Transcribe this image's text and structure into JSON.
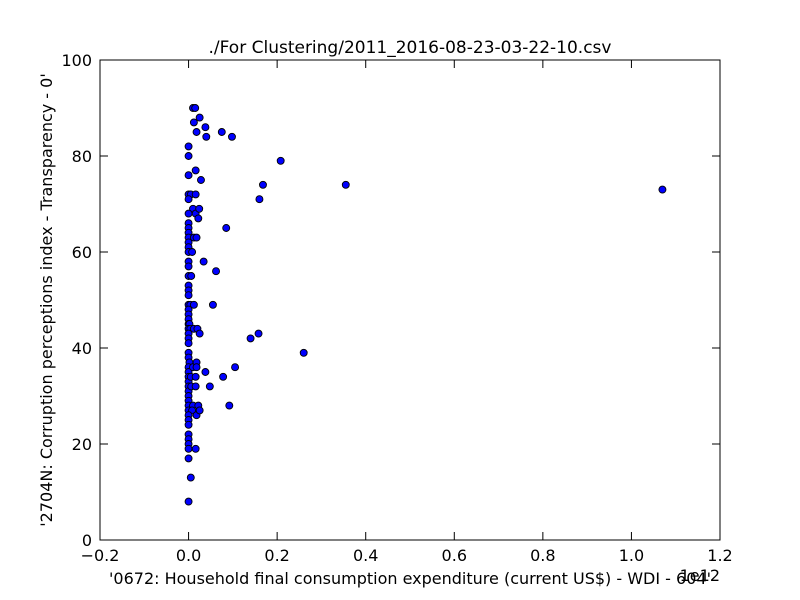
{
  "chart_data": {
    "type": "scatter",
    "title": "./For Clustering/2011_2016-08-23-03-22-10.csv",
    "xlabel": "'0672: Household final consumption expenditure  (current US$) - WDI - 604'",
    "ylabel": "'2704N: Corruption perceptions index - Transparency - 0'",
    "x_offset_label": "1e12",
    "xlim": [
      -0.2,
      1.2
    ],
    "ylim": [
      0,
      100
    ],
    "x_ticks": [
      "−0.2",
      "0.0",
      "0.2",
      "0.4",
      "0.6",
      "0.8",
      "1.0",
      "1.2"
    ],
    "y_ticks": [
      "0",
      "20",
      "40",
      "60",
      "80",
      "100"
    ],
    "grid": false,
    "marker_color": "#0000ff",
    "series": [
      {
        "points": [
          [
            0.01,
            90
          ],
          [
            0.015,
            90
          ],
          [
            0.012,
            87
          ],
          [
            0.025,
            88
          ],
          [
            0.018,
            85
          ],
          [
            0.038,
            86
          ],
          [
            0.04,
            84
          ],
          [
            0.075,
            85
          ],
          [
            0.098,
            84
          ],
          [
            0.0,
            82
          ],
          [
            0.0,
            80
          ],
          [
            0.016,
            77
          ],
          [
            0.0,
            76
          ],
          [
            0.028,
            75
          ],
          [
            0.0,
            72
          ],
          [
            0.005,
            72
          ],
          [
            0.016,
            72
          ],
          [
            0.0,
            71
          ],
          [
            0.01,
            69
          ],
          [
            0.016,
            68
          ],
          [
            0.024,
            69
          ],
          [
            0.022,
            67
          ],
          [
            0.0,
            68
          ],
          [
            0.0,
            66
          ],
          [
            0.0,
            65
          ],
          [
            0.0,
            64
          ],
          [
            0.0,
            63
          ],
          [
            0.0,
            62
          ],
          [
            0.012,
            63
          ],
          [
            0.018,
            63
          ],
          [
            0.0,
            61
          ],
          [
            0.0,
            60
          ],
          [
            0.008,
            60
          ],
          [
            0.0,
            58
          ],
          [
            0.0,
            57
          ],
          [
            0.034,
            58
          ],
          [
            0.0,
            55
          ],
          [
            0.006,
            55
          ],
          [
            0.062,
            56
          ],
          [
            0.0,
            53
          ],
          [
            0.0,
            52
          ],
          [
            0.0,
            51
          ],
          [
            0.0,
            49
          ],
          [
            0.004,
            49
          ],
          [
            0.012,
            49
          ],
          [
            0.055,
            49
          ],
          [
            0.0,
            48
          ],
          [
            0.0,
            47
          ],
          [
            0.0,
            46
          ],
          [
            0.0,
            45
          ],
          [
            0.002,
            45
          ],
          [
            0.0,
            44
          ],
          [
            0.004,
            44
          ],
          [
            0.012,
            44
          ],
          [
            0.02,
            44
          ],
          [
            0.025,
            43
          ],
          [
            0.0,
            43
          ],
          [
            0.0,
            42
          ],
          [
            0.0,
            41
          ],
          [
            0.0,
            39
          ],
          [
            0.0,
            38
          ],
          [
            0.002,
            37
          ],
          [
            0.0,
            36
          ],
          [
            0.0,
            35
          ],
          [
            0.01,
            36
          ],
          [
            0.018,
            37
          ],
          [
            0.018,
            36
          ],
          [
            0.0,
            34
          ],
          [
            0.0,
            33
          ],
          [
            0.005,
            34
          ],
          [
            0.016,
            34
          ],
          [
            0.0,
            32
          ],
          [
            0.0,
            31
          ],
          [
            0.006,
            32
          ],
          [
            0.016,
            32
          ],
          [
            0.0,
            30
          ],
          [
            0.0,
            29
          ],
          [
            0.0,
            28
          ],
          [
            0.01,
            28
          ],
          [
            0.022,
            28
          ],
          [
            0.0,
            27
          ],
          [
            0.008,
            27
          ],
          [
            0.018,
            26
          ],
          [
            0.025,
            27
          ],
          [
            0.0,
            26
          ],
          [
            0.0,
            25
          ],
          [
            0.0,
            24
          ],
          [
            0.0,
            22
          ],
          [
            0.0,
            21
          ],
          [
            0.0,
            20
          ],
          [
            0.0,
            19
          ],
          [
            0.016,
            19
          ],
          [
            0.0,
            17
          ],
          [
            0.005,
            13
          ],
          [
            0.0,
            8
          ],
          [
            0.038,
            35
          ],
          [
            0.048,
            32
          ],
          [
            0.078,
            34
          ],
          [
            0.105,
            36
          ],
          [
            0.092,
            28
          ],
          [
            0.085,
            65
          ],
          [
            0.14,
            42
          ],
          [
            0.158,
            43
          ],
          [
            0.16,
            71
          ],
          [
            0.168,
            74
          ],
          [
            0.208,
            79
          ],
          [
            0.26,
            39
          ],
          [
            0.355,
            74
          ],
          [
            1.07,
            73
          ]
        ]
      }
    ]
  }
}
